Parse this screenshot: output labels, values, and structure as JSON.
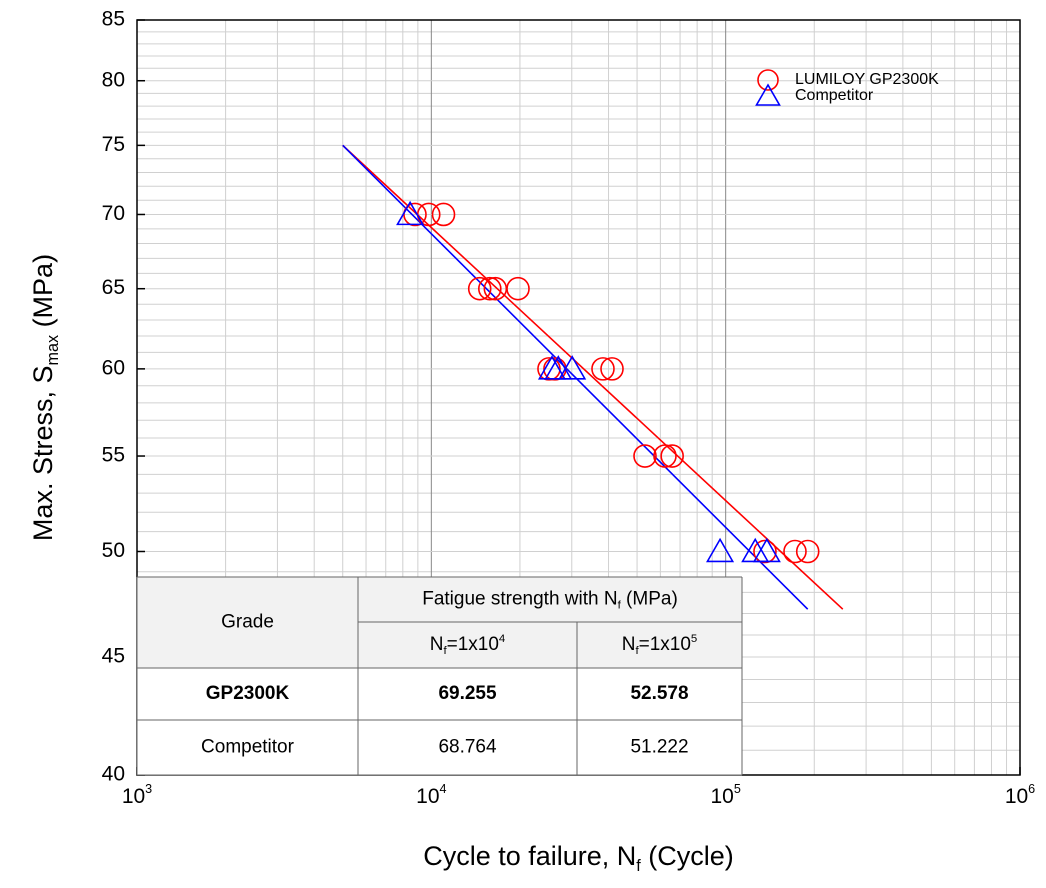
{
  "chart_data": {
    "type": "scatter",
    "xlabel": [
      {
        "text": "Cycle to failure, N"
      },
      {
        "text": "f",
        "style": "sub"
      },
      {
        "text": " (Cycle)"
      }
    ],
    "ylabel": [
      {
        "text": "Max. Stress, S"
      },
      {
        "text": "max",
        "style": "sub"
      },
      {
        "text": " (MPa)"
      }
    ],
    "xscale": "log",
    "yscale": "log",
    "grid": true,
    "legend": "upper right",
    "xlim": [
      1000,
      1000000
    ],
    "xticks": [
      {
        "value": 1000,
        "label": [
          {
            "text": "10"
          },
          {
            "text": "3",
            "style": "sup"
          }
        ]
      },
      {
        "value": 10000,
        "label": [
          {
            "text": "10"
          },
          {
            "text": "4",
            "style": "sup"
          }
        ]
      },
      {
        "value": 100000,
        "label": [
          {
            "text": "10"
          },
          {
            "text": "5",
            "style": "sup"
          }
        ]
      },
      {
        "value": 1000000,
        "label": [
          {
            "text": "10"
          },
          {
            "text": "6",
            "style": "sup"
          }
        ]
      }
    ],
    "xminorticks": [
      2000,
      3000,
      4000,
      5000,
      6000,
      7000,
      8000,
      9000,
      20000,
      30000,
      40000,
      50000,
      60000,
      70000,
      80000,
      90000,
      200000,
      300000,
      400000,
      500000,
      600000,
      700000,
      800000,
      900000
    ],
    "ylim": [
      40,
      85
    ],
    "yticks": [
      40,
      45,
      50,
      55,
      60,
      65,
      70,
      75,
      80,
      85
    ],
    "yminorticks": [
      41,
      42,
      43,
      44,
      46,
      47,
      48,
      49,
      51,
      52,
      53,
      54,
      56,
      57,
      58,
      59,
      61,
      62,
      63,
      64,
      66,
      67,
      68,
      69,
      71,
      72,
      73,
      74,
      76,
      77,
      78,
      79,
      81,
      82,
      83,
      84
    ],
    "series": [
      {
        "name": "LUMILOY GP2300K",
        "color": "#ff0000",
        "marker": "circle",
        "x": [
          8800,
          9800,
          11000,
          14600,
          15800,
          16500,
          19700,
          25100,
          26300,
          38300,
          41100,
          53200,
          62200,
          65800,
          136000,
          172000,
          190000
        ],
        "values": [
          70,
          70,
          70,
          65,
          65,
          65,
          65,
          60,
          60,
          60,
          60,
          55,
          55,
          55,
          50,
          50,
          50
        ]
      },
      {
        "name": "Competitor",
        "color": "#0000ff",
        "marker": "triangle",
        "x": [
          8470,
          25700,
          27000,
          30100,
          95700,
          126000,
          138000
        ],
        "values": [
          70,
          60,
          60,
          60,
          50,
          50,
          50
        ]
      }
    ],
    "fits": [
      {
        "color": "#ff0000",
        "x": [
          5000,
          250000
        ],
        "values": [
          75,
          47.2
        ]
      },
      {
        "color": "#0000ff",
        "x": [
          5000,
          190000
        ],
        "values": [
          75,
          47.2
        ]
      }
    ]
  },
  "table": {
    "headers": [
      [
        {
          "text": "Grade"
        }
      ],
      [
        {
          "text": "Fatigue strength with N"
        },
        {
          "text": "f",
          "style": "sub"
        },
        {
          "text": " (MPa)"
        }
      ],
      [
        {
          "text": "N"
        },
        {
          "text": "f",
          "style": "sub"
        },
        {
          "text": "=1x10"
        },
        {
          "text": "4",
          "style": "sup"
        }
      ],
      [
        {
          "text": "N"
        },
        {
          "text": "f",
          "style": "sub"
        },
        {
          "text": "=1x10"
        },
        {
          "text": "5",
          "style": "sup"
        }
      ]
    ],
    "rows": [
      [
        "GP2300K",
        "69.255",
        "52.578"
      ],
      [
        "Competitor",
        "68.764",
        "51.222"
      ]
    ],
    "highlight_row": 0,
    "highlight_color": "#e0582a"
  }
}
